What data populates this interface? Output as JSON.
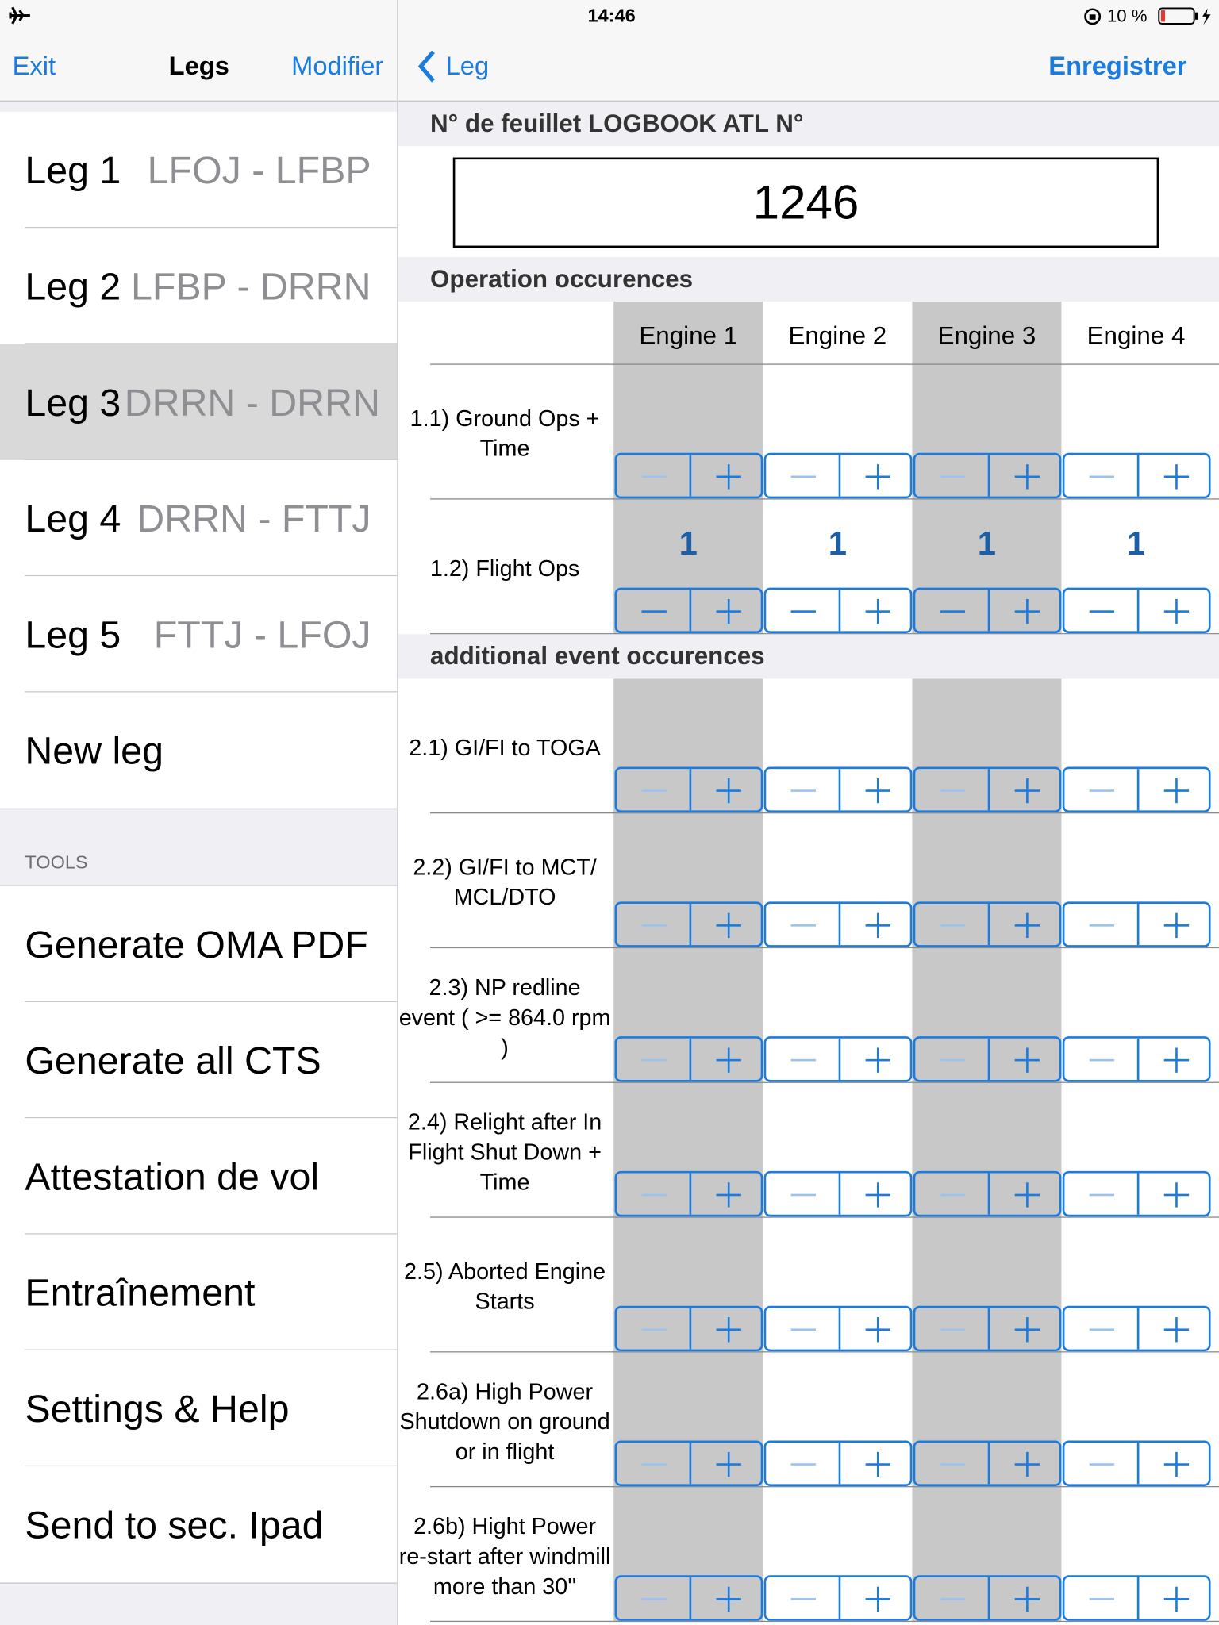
{
  "status_bar": {
    "time": "14:46",
    "battery": "10 %"
  },
  "sidebar": {
    "nav": {
      "left": "Exit",
      "title": "Legs",
      "right": "Modifier"
    },
    "legs": [
      {
        "name": "Leg 1",
        "route": "LFOJ - LFBP"
      },
      {
        "name": "Leg 2",
        "route": "LFBP - DRRN"
      },
      {
        "name": "Leg 3",
        "route": "DRRN - DRRN",
        "selected": true
      },
      {
        "name": "Leg 4",
        "route": "DRRN - FTTJ"
      },
      {
        "name": "Leg 5",
        "route": "FTTJ - LFOJ"
      }
    ],
    "new_leg": "New leg",
    "tools_header": "TOOLS",
    "tools": [
      "Generate OMA PDF",
      "Generate all CTS",
      "Attestation de vol",
      "Entraînement",
      "Settings & Help",
      "Send to sec. Ipad"
    ]
  },
  "detail": {
    "nav": {
      "back": "Leg",
      "save": "Enregistrer"
    },
    "logbook_header": "N° de feuillet LOGBOOK ATL N°",
    "logbook_value": "1246",
    "engines": [
      "Engine 1",
      "Engine 2",
      "Engine 3",
      "Engine 4"
    ],
    "sections": [
      {
        "title": "Operation occurences",
        "rows": [
          {
            "label": "1.1) Ground Ops + Time"
          },
          {
            "label": "1.2) Flight Ops",
            "values": [
              1,
              1,
              1,
              1
            ]
          }
        ]
      },
      {
        "title": "additional event occurences",
        "rows": [
          {
            "label": "2.1) GI/FI to TOGA"
          },
          {
            "label": "2.2) GI/FI to MCT/ MCL/DTO"
          },
          {
            "label": "2.3) NP redline event ( >= 864.0 rpm )"
          },
          {
            "label": "2.4) Relight after In Flight Shut Down + Time"
          },
          {
            "label": "2.5) Aborted Engine Starts"
          },
          {
            "label": "2.6a) High Power Shutdown on ground or in flight"
          },
          {
            "label": "2.6b) Hight Power re-start after windmill more than 30''"
          }
        ]
      }
    ]
  }
}
